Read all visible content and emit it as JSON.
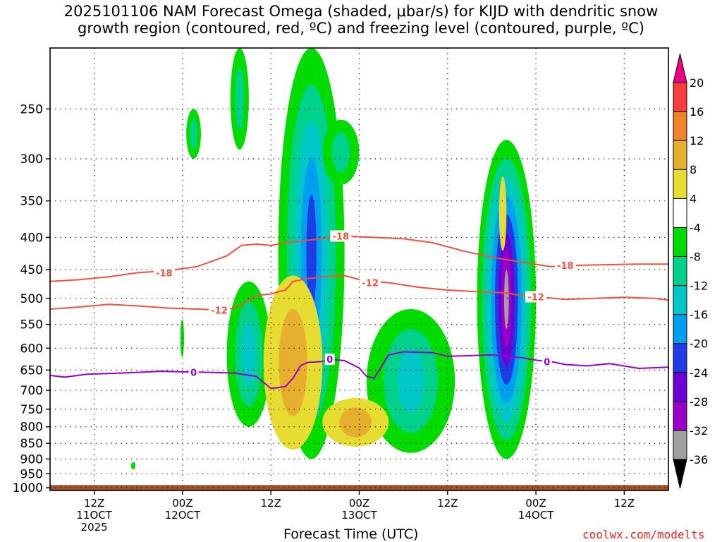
{
  "title": {
    "line1": "2025101106 NAM Forecast Omega (shaded, μbar/s) for KIJD with dendritic snow",
    "line2": "growth region (contoured, red, ºC) and freezing level (contoured, purple, ºC)"
  },
  "credit": "coolwx.com/modelts",
  "chart_data": {
    "type": "heatmap",
    "title": "2025101106 NAM Forecast Omega (shaded, μbar/s) for KIJD with dendritic snow growth region (contoured, red, ºC) and freezing level (contoured, purple, ºC)",
    "xlabel": "Forecast Time (UTC)",
    "ylabel": "",
    "x_unit": "hours since 2025-10-11 06Z",
    "xlim": [
      0,
      84
    ],
    "ylim": [
      1010,
      200
    ],
    "y_scale": "log-pressure",
    "grid": true,
    "x_ticks": [
      {
        "h": 6,
        "labels": [
          "12Z",
          "11OCT",
          "2025"
        ]
      },
      {
        "h": 18,
        "labels": [
          "00Z",
          "12OCT"
        ]
      },
      {
        "h": 30,
        "labels": [
          "12Z"
        ]
      },
      {
        "h": 42,
        "labels": [
          "00Z",
          "13OCT"
        ]
      },
      {
        "h": 54,
        "labels": [
          "12Z"
        ]
      },
      {
        "h": 66,
        "labels": [
          "00Z",
          "14OCT"
        ]
      },
      {
        "h": 78,
        "labels": [
          "12Z"
        ]
      }
    ],
    "y_ticks": [
      250,
      300,
      350,
      400,
      450,
      500,
      550,
      600,
      650,
      700,
      750,
      800,
      850,
      900,
      950,
      1000
    ],
    "colorbar": {
      "levels": [
        -36,
        -32,
        -28,
        -24,
        -20,
        -16,
        -12,
        -8,
        -4,
        4,
        8,
        12,
        16,
        20
      ],
      "colors": [
        "#000000",
        "#a0a0a0",
        "#9a00c8",
        "#6e00d7",
        "#1f3ce6",
        "#00a0f0",
        "#00c8c8",
        "#00d28c",
        "#00dc00",
        "#ffffff",
        "#e6dc32",
        "#e6af2d",
        "#f08228",
        "#fa3c3c",
        "#f00082"
      ]
    },
    "contours": [
      {
        "kind": "dendritic",
        "value": -18,
        "label": "-18",
        "color": "#f0503c",
        "points": [
          [
            0,
            470
          ],
          [
            4,
            467
          ],
          [
            8,
            462
          ],
          [
            12,
            455
          ],
          [
            16,
            452
          ],
          [
            20,
            445
          ],
          [
            24,
            428
          ],
          [
            26,
            412
          ],
          [
            28,
            410
          ],
          [
            30,
            412
          ],
          [
            32,
            408
          ],
          [
            36,
            403
          ],
          [
            40,
            398
          ],
          [
            44,
            400
          ],
          [
            48,
            402
          ],
          [
            52,
            408
          ],
          [
            56,
            420
          ],
          [
            60,
            430
          ],
          [
            64,
            438
          ],
          [
            68,
            445
          ],
          [
            72,
            443
          ],
          [
            76,
            442
          ],
          [
            80,
            441
          ],
          [
            84,
            441
          ]
        ],
        "label_positions": [
          [
            15.5,
            455
          ],
          [
            39.5,
            398
          ],
          [
            70,
            443
          ]
        ]
      },
      {
        "kind": "dendritic",
        "value": -12,
        "label": "-12",
        "color": "#f0503c",
        "points": [
          [
            0,
            520
          ],
          [
            4,
            516
          ],
          [
            8,
            511
          ],
          [
            12,
            514
          ],
          [
            16,
            518
          ],
          [
            20,
            520
          ],
          [
            24,
            522
          ],
          [
            26,
            512
          ],
          [
            28,
            495
          ],
          [
            30,
            492
          ],
          [
            31,
            488
          ],
          [
            32,
            485
          ],
          [
            33,
            470
          ],
          [
            35,
            465
          ],
          [
            37,
            462
          ],
          [
            40,
            460
          ],
          [
            43,
            470
          ],
          [
            46,
            472
          ],
          [
            50,
            480
          ],
          [
            54,
            485
          ],
          [
            58,
            488
          ],
          [
            62,
            490
          ],
          [
            64,
            495
          ],
          [
            66,
            497
          ],
          [
            70,
            502
          ],
          [
            74,
            500
          ],
          [
            78,
            498
          ],
          [
            82,
            500
          ],
          [
            84,
            503
          ]
        ],
        "label_positions": [
          [
            23,
            522
          ],
          [
            43.5,
            472
          ],
          [
            66,
            497
          ]
        ]
      },
      {
        "kind": "freezing",
        "value": 0,
        "label": "0",
        "color": "#9a00c8",
        "points": [
          [
            0,
            663
          ],
          [
            2,
            667
          ],
          [
            5,
            660
          ],
          [
            10,
            657
          ],
          [
            15,
            653
          ],
          [
            20,
            655
          ],
          [
            25,
            657
          ],
          [
            28,
            665
          ],
          [
            30,
            695
          ],
          [
            31,
            693
          ],
          [
            32,
            690
          ],
          [
            33,
            670
          ],
          [
            34,
            640
          ],
          [
            35,
            632
          ],
          [
            37,
            630
          ],
          [
            38,
            625
          ],
          [
            40,
            628
          ],
          [
            42,
            645
          ],
          [
            43,
            665
          ],
          [
            44,
            670
          ],
          [
            46,
            615
          ],
          [
            48,
            608
          ],
          [
            52,
            610
          ],
          [
            54,
            618
          ],
          [
            56,
            617
          ],
          [
            60,
            615
          ],
          [
            64,
            621
          ],
          [
            66,
            627
          ],
          [
            68,
            630
          ],
          [
            70,
            637
          ],
          [
            73,
            640
          ],
          [
            76,
            635
          ],
          [
            80,
            646
          ],
          [
            84,
            643
          ]
        ],
        "label_positions": [
          [
            19.5,
            655
          ],
          [
            38,
            625
          ],
          [
            67.5,
            630
          ]
        ]
      }
    ],
    "omega_features": [
      {
        "id": "blob-a",
        "values": [
          -8,
          -12
        ],
        "time_range": [
          18.5,
          20.5
        ],
        "p_range": [
          250,
          300
        ]
      },
      {
        "id": "blob-b",
        "values": [
          -8,
          -12
        ],
        "time_range": [
          24.5,
          27
        ],
        "p_range": [
          200,
          290
        ]
      },
      {
        "id": "blob-c",
        "values": [
          -8,
          -12,
          -16,
          -20,
          -24
        ],
        "time_range": [
          31,
          40
        ],
        "p_range": [
          200,
          900
        ]
      },
      {
        "id": "blob-d",
        "values": [
          -8,
          -12
        ],
        "time_range": [
          37,
          42
        ],
        "p_range": [
          260,
          330
        ]
      },
      {
        "id": "blob-e",
        "values": [
          -8,
          -12,
          -16
        ],
        "time_range": [
          24,
          30
        ],
        "p_range": [
          470,
          800
        ]
      },
      {
        "id": "blob-f",
        "values": [
          -8,
          -12,
          -16
        ],
        "time_range": [
          43,
          55
        ],
        "p_range": [
          520,
          880
        ]
      },
      {
        "id": "blob-g",
        "values": [
          -8,
          -12,
          -16,
          -20,
          -24,
          -28,
          -32,
          -36
        ],
        "time_range": [
          58,
          66
        ],
        "p_range": [
          280,
          900
        ]
      },
      {
        "id": "blob-h",
        "values": [
          -8
        ],
        "time_range": [
          17.7,
          18.2
        ],
        "p_range": [
          540,
          620
        ]
      },
      {
        "id": "blob-i",
        "values": [
          -8
        ],
        "time_range": [
          11,
          11.6
        ],
        "p_range": [
          910,
          935
        ]
      },
      {
        "id": "pos-a",
        "values": [
          4,
          8
        ],
        "time_range": [
          29,
          37
        ],
        "p_range": [
          460,
          870
        ]
      },
      {
        "id": "pos-b",
        "values": [
          4,
          8
        ],
        "time_range": [
          37,
          46
        ],
        "p_range": [
          720,
          860
        ]
      },
      {
        "id": "pos-c",
        "values": [
          4
        ],
        "time_range": [
          61,
          62
        ],
        "p_range": [
          320,
          420
        ]
      }
    ],
    "surface": {
      "label": "terrain",
      "color": "#a0522d",
      "p_min": 990
    }
  }
}
